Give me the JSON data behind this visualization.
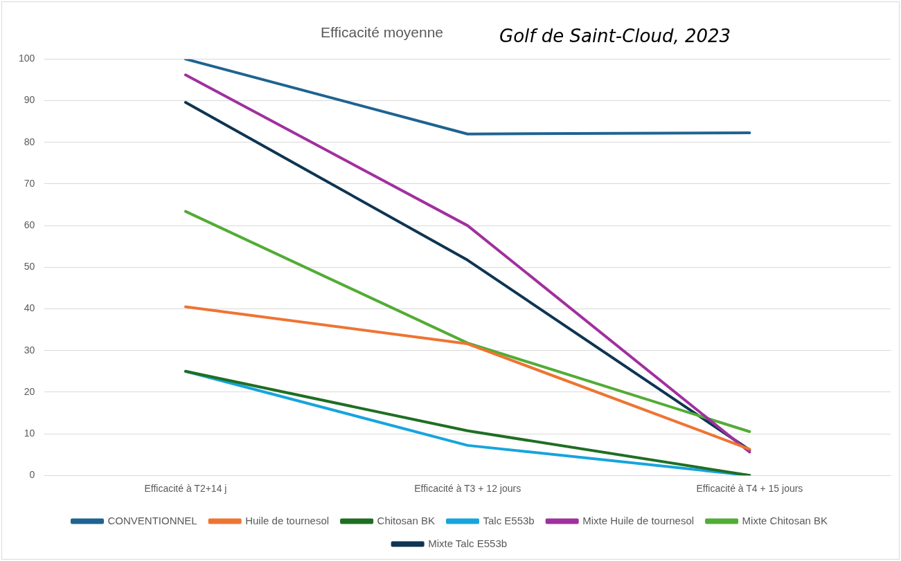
{
  "chart_data": {
    "type": "line",
    "title": "Efficacité moyenne",
    "subtitle": "Golf de Saint-Cloud, 2023",
    "categories": [
      "Efficacité à T2+14 j",
      "Efficacité à T3 + 12 jours",
      "Efficacité à T4 + 15 jours"
    ],
    "series": [
      {
        "name": "CONVENTIONNEL",
        "color": "#1f6391",
        "values": [
          100,
          82,
          82.3
        ]
      },
      {
        "name": "Huile de tournesol",
        "color": "#ee7433",
        "values": [
          40.5,
          31.6,
          6.3
        ]
      },
      {
        "name": "Chitosan BK",
        "color": "#1f6e24",
        "values": [
          25,
          10.7,
          0
        ]
      },
      {
        "name": "Talc E553b",
        "color": "#17a4dd",
        "values": [
          25,
          7.2,
          0
        ]
      },
      {
        "name": "Mixte Huile de tournesol",
        "color": "#a0309e",
        "values": [
          96.2,
          60,
          5.6
        ]
      },
      {
        "name": "Mixte Chitosan BK",
        "color": "#52ac35",
        "values": [
          63.4,
          31.8,
          10.5
        ]
      },
      {
        "name": "Mixte Talc E553b",
        "color": "#0e3552",
        "values": [
          89.6,
          51.7,
          6.1
        ]
      }
    ],
    "ylim": [
      0,
      100
    ],
    "yticks": [
      0,
      10,
      20,
      30,
      40,
      50,
      60,
      70,
      80,
      90,
      100
    ],
    "grid": "y",
    "legend": "bottom",
    "marker": "none",
    "line_style": "solid"
  }
}
